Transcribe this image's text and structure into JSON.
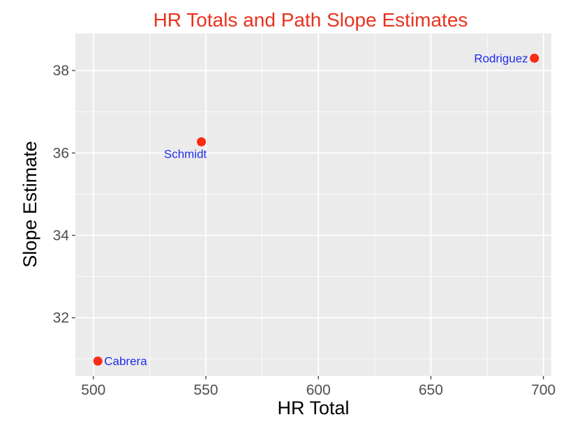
{
  "chart_data": {
    "type": "scatter",
    "title": "HR Totals and Path Slope Estimates",
    "xlabel": "HR Total",
    "ylabel": "Slope Estimate",
    "xlim": [
      492,
      703.5
    ],
    "ylim": [
      30.59,
      38.9
    ],
    "x_major_ticks": [
      500,
      550,
      600,
      650,
      700
    ],
    "x_minor_ticks": [
      525,
      575,
      625,
      675
    ],
    "y_major_ticks": [
      32,
      34,
      36,
      38
    ],
    "y_minor_ticks": [
      31,
      33,
      35,
      37
    ],
    "grid": true,
    "colors": {
      "title": "#e8331f",
      "point": "#fa2a14",
      "point_label": "#1f2ee8",
      "panel": "#ebebeb",
      "grid": "#ffffff",
      "tick_label": "#4d4d4d"
    },
    "points": [
      {
        "label": "Rodriguez",
        "x": 696,
        "y": 38.3,
        "label_side": "left"
      },
      {
        "label": "Schmidt",
        "x": 548,
        "y": 36.27,
        "label_side": "below"
      },
      {
        "label": "Cabrera",
        "x": 502,
        "y": 30.95,
        "label_side": "right"
      }
    ]
  }
}
